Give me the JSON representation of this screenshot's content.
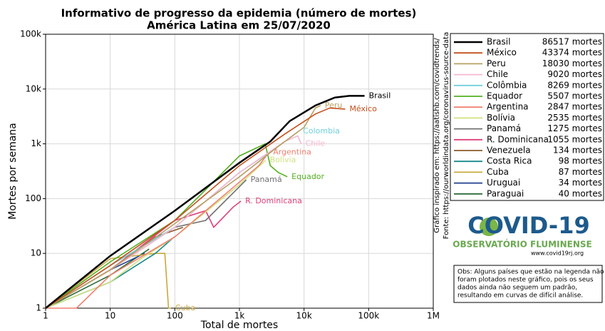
{
  "chart_data": {
    "type": "line",
    "title": "Informativo de progresso da epidemia (número de mortes)",
    "subtitle": "América Latina em 25/07/2020",
    "x_label": "Total de mortes",
    "y_label": "Mortes por semana",
    "log_x": true,
    "log_y": true,
    "grid": true,
    "xlim": [
      1,
      1000000
    ],
    "xticks": [
      1,
      10,
      100,
      {
        "value": 1000,
        "label": "1k"
      },
      {
        "value": 10000,
        "label": "10k"
      },
      {
        "value": 100000,
        "label": "100k"
      },
      {
        "value": 1000000,
        "label": "1M"
      }
    ],
    "ylim": [
      1,
      100000
    ],
    "yticks": [
      1,
      10,
      100,
      {
        "value": 1000,
        "label": "1k"
      },
      {
        "value": 10000,
        "label": "10k"
      },
      {
        "value": 100000,
        "label": "100k"
      }
    ],
    "legend_position": "right",
    "series": [
      {
        "name": "Brasil",
        "total": "86517 mortes",
        "end_label": "Brasil",
        "color": "#000000",
        "x": [
          1,
          10,
          100,
          1000,
          3000,
          6000,
          15000,
          30000,
          50000,
          86517
        ],
        "values": [
          1,
          9,
          60,
          450,
          1100,
          2600,
          5000,
          7000,
          7500,
          7500
        ]
      },
      {
        "name": "México",
        "total": "43374 mortes",
        "end_label": "México",
        "color": "#c4501c",
        "x": [
          1,
          10,
          100,
          1000,
          5000,
          15000,
          25000,
          43374
        ],
        "values": [
          1,
          6,
          40,
          400,
          1500,
          3500,
          4500,
          4300
        ]
      },
      {
        "name": "Peru",
        "total": "18030 mortes",
        "end_label": "Peru",
        "color": "#b8a060",
        "x": [
          1,
          10,
          100,
          1000,
          4000,
          10000,
          15000,
          18030
        ],
        "values": [
          1,
          5,
          35,
          250,
          900,
          2000,
          4500,
          5000
        ]
      },
      {
        "name": "Chile",
        "total": "9020 mortes",
        "end_label": "Chile",
        "color": "#f7b6d2",
        "x": [
          1,
          10,
          100,
          1000,
          5000,
          8000,
          9020
        ],
        "values": [
          1,
          5,
          30,
          300,
          1100,
          1400,
          1000
        ]
      },
      {
        "name": "Colômbia",
        "total": "8269 mortes",
        "end_label": "Colombia",
        "color": "#6fd0dc",
        "x": [
          1,
          10,
          100,
          1000,
          4000,
          8269
        ],
        "values": [
          1,
          6,
          30,
          300,
          900,
          1700
        ]
      },
      {
        "name": "Equador",
        "total": "5507 mortes",
        "end_label": "Equador",
        "color": "#52b020",
        "x": [
          1,
          10,
          100,
          1000,
          2500,
          3000,
          4000,
          5507
        ],
        "values": [
          1,
          7,
          40,
          600,
          1000,
          400,
          300,
          250
        ]
      },
      {
        "name": "Argentina",
        "total": "2847 mortes",
        "end_label": "Argentina",
        "color": "#f08070",
        "x": [
          1,
          3,
          10,
          100,
          1000,
          2000,
          2847
        ],
        "values": [
          1,
          1,
          4,
          20,
          200,
          400,
          700
        ]
      },
      {
        "name": "Bolívia",
        "total": "2535 mortes",
        "end_label": "Bolívia",
        "color": "#d0e080",
        "x": [
          1,
          10,
          30,
          100,
          1000,
          2535
        ],
        "values": [
          1,
          3,
          8,
          20,
          180,
          500
        ]
      },
      {
        "name": "Panamá",
        "total": "1275 mortes",
        "end_label": "Panamá",
        "color": "#707070",
        "x": [
          1,
          10,
          100,
          300,
          1275
        ],
        "values": [
          1,
          5,
          30,
          40,
          220
        ]
      },
      {
        "name": "R. Dominicana",
        "total": "1055 mortes",
        "end_label": "R. Dominicana",
        "color": "#e0407a",
        "x": [
          1,
          10,
          100,
          300,
          400,
          800,
          1055
        ],
        "values": [
          1,
          5,
          40,
          60,
          30,
          70,
          90
        ]
      },
      {
        "name": "Venezuela",
        "total": "134 mortes",
        "color": "#8c5a2a",
        "x": [
          1,
          10,
          50,
          134
        ],
        "values": [
          1,
          5,
          20,
          30
        ]
      },
      {
        "name": "Costa Rica",
        "total": "98 mortes",
        "color": "#1a8a8a",
        "x": [
          1,
          10,
          50,
          98
        ],
        "values": [
          1,
          3,
          10,
          20
        ]
      },
      {
        "name": "Cuba",
        "total": "87 mortes",
        "end_label": "Cuba",
        "color": "#c8a83c",
        "x": [
          1,
          10,
          50,
          70,
          80,
          87
        ],
        "values": [
          1,
          8,
          10,
          10,
          1,
          1
        ]
      },
      {
        "name": "Uruguai",
        "total": "34 mortes",
        "color": "#1f3f8f",
        "x": [
          1,
          10,
          34
        ],
        "values": [
          1,
          5,
          10
        ]
      },
      {
        "name": "Paraguai",
        "total": "40 mortes",
        "color": "#2e6b3a",
        "x": [
          1,
          10,
          40
        ],
        "values": [
          1,
          4,
          12
        ]
      }
    ]
  },
  "side_notes": [
    "Gráfico inspirado em: https://aatishb.com/covidtrends/",
    "Fonte: https://ourworldindata.org/coronavirus-source-data"
  ],
  "logo": {
    "title": "COVID-19",
    "subtitle": "OBSERVATÓRIO FLUMINENSE",
    "url": "www.covid19rj.org"
  },
  "note": [
    "Obs: Alguns países que estão na legenda não",
    "foram plotados neste gráfico, pois os seus",
    "dados ainda não seguem um padrão,",
    "resultando em curvas de difícil análise."
  ]
}
